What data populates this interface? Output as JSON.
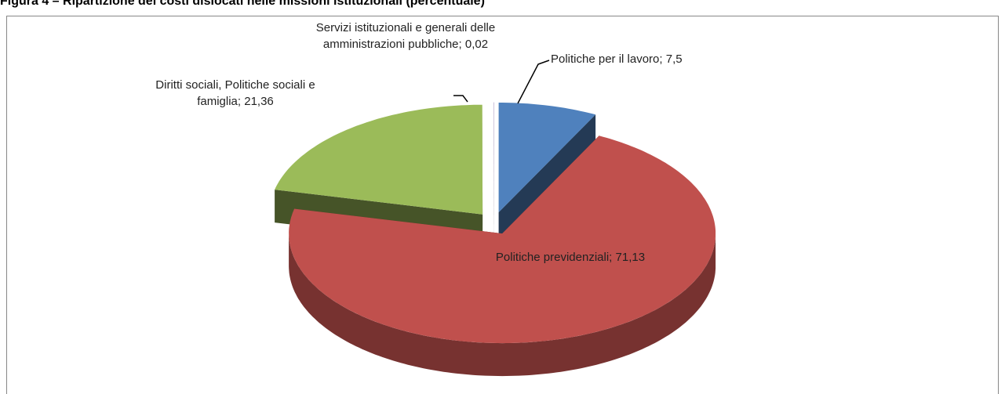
{
  "chart_data": {
    "type": "pie3d",
    "title": "Figura 4 – Ripartizione dei costi dislocati nelle missioni istituzionali (percentuale)",
    "categories": [
      "Politiche per il lavoro",
      "Politiche previdenziali",
      "Diritti sociali, Politiche sociali e famiglia",
      "Servizi istituzionali e generali delle amministrazioni pubbliche"
    ],
    "values": [
      7.5,
      71.13,
      21.36,
      0.02
    ],
    "value_labels": [
      "7,5",
      "71,13",
      "21,36",
      "0,02"
    ],
    "label_separator": "; ",
    "colors": [
      "#4f81bd",
      "#c0504d",
      "#9bbb59",
      "#8064a2"
    ]
  }
}
